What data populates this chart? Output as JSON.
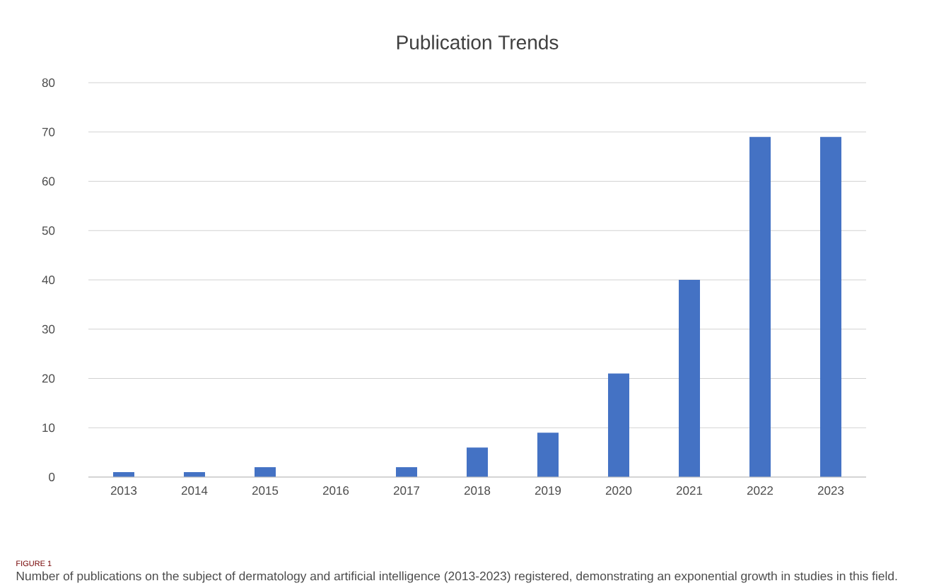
{
  "chart_data": {
    "type": "bar",
    "title": "Publication Trends",
    "categories": [
      "2013",
      "2014",
      "2015",
      "2016",
      "2017",
      "2018",
      "2019",
      "2020",
      "2021",
      "2022",
      "2023"
    ],
    "values": [
      1,
      1,
      2,
      0,
      2,
      6,
      9,
      21,
      40,
      69,
      69
    ],
    "color": "#4472c4",
    "ylim": [
      0,
      80
    ],
    "yticks": [
      0,
      10,
      20,
      30,
      40,
      50,
      60,
      70,
      80
    ],
    "grid": "y",
    "annotations": [
      "FIGURE 1",
      "Number of publications on the subject of dermatology and artificial intelligence (2013-2023) registered, demonstrating an exponential growth in studies in this field."
    ]
  }
}
